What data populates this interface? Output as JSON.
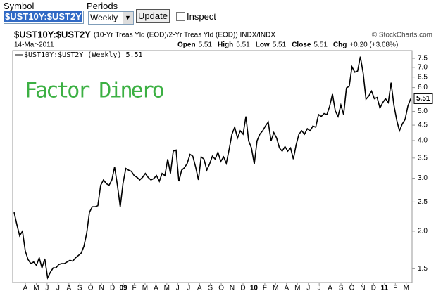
{
  "form": {
    "symbol_label": "Symbol",
    "symbol_value": "$UST10Y:$UST2Y",
    "periods_label": "Periods",
    "periods_value": "Weekly",
    "button": "Update",
    "checkbox": "Inspect"
  },
  "chart_data": {
    "type": "line",
    "title": "$UST10Y:$UST2Y",
    "subtitle": "(10-Yr Treas Yld (EOD)/2-Yr Treas Yld (EOD))  INDX/INDX",
    "credit": "© StockCharts.com",
    "date": "14-Mar-2011",
    "quote": [
      {
        "label": "Open",
        "value": "5.51"
      },
      {
        "label": "High",
        "value": "5.51"
      },
      {
        "label": "Low",
        "value": "5.51"
      },
      {
        "label": "Close",
        "value": "5.51"
      },
      {
        "label": "Chg",
        "value": "+0.20 (+3.68%)"
      }
    ],
    "watermark": "Factor Dinero",
    "last_value_label": "5.51",
    "log_scale": true,
    "grid": false,
    "xticks": [
      "A",
      "M",
      "J",
      "J",
      "A",
      "S",
      "O",
      "N",
      "D",
      "09",
      "F",
      "M",
      "A",
      "M",
      "J",
      "J",
      "A",
      "S",
      "O",
      "N",
      "D",
      "10",
      "F",
      "M",
      "A",
      "M",
      "J",
      "J",
      "A",
      "S",
      "O",
      "N",
      "D",
      "11",
      "F",
      "M"
    ],
    "ylim": [
      1.35,
      7.96
    ],
    "yticks": [
      1.5,
      {
        "value": 2,
        "label": "2.0"
      },
      2.5,
      {
        "value": 3,
        "label": "3.0"
      },
      3.5,
      {
        "value": 4,
        "label": "4.0"
      },
      4.5,
      {
        "value": 5,
        "label": "5.0"
      },
      {
        "value": 6,
        "label": "6.0"
      },
      6.5,
      {
        "value": 7,
        "label": "7.0"
      },
      7.5
    ],
    "series": [
      {
        "name": "$UST10Y:$UST2Y (Weekly) 5.51",
        "color": "#000000",
        "values": [
          2.31,
          2.1,
          1.93,
          2.0,
          1.72,
          1.61,
          1.56,
          1.58,
          1.54,
          1.63,
          1.51,
          1.62,
          1.4,
          1.46,
          1.51,
          1.51,
          1.55,
          1.56,
          1.56,
          1.58,
          1.6,
          1.59,
          1.63,
          1.66,
          1.69,
          1.78,
          1.97,
          2.31,
          2.41,
          2.41,
          2.43,
          2.84,
          2.96,
          2.88,
          2.84,
          2.96,
          3.27,
          2.84,
          2.41,
          2.88,
          3.23,
          3.19,
          3.16,
          3.06,
          3.02,
          2.96,
          3.02,
          3.11,
          3.02,
          2.96,
          2.99,
          3.06,
          2.93,
          3.11,
          3.06,
          3.47,
          3.11,
          3.69,
          3.72,
          2.93,
          3.19,
          3.25,
          3.36,
          3.6,
          3.55,
          3.27,
          2.96,
          3.53,
          3.47,
          3.19,
          3.34,
          3.55,
          3.47,
          3.66,
          3.41,
          3.53,
          3.36,
          3.74,
          4.2,
          4.43,
          4.08,
          4.31,
          4.2,
          4.81,
          3.99,
          3.78,
          3.34,
          3.99,
          4.2,
          4.31,
          4.47,
          4.61,
          3.99,
          4.25,
          4.08,
          3.78,
          3.69,
          3.82,
          3.69,
          3.78,
          3.47,
          3.87,
          4.2,
          4.31,
          4.2,
          4.38,
          4.31,
          4.47,
          4.43,
          4.88,
          4.81,
          4.92,
          4.88,
          5.2,
          5.71,
          5.02,
          4.81,
          5.25,
          4.88,
          5.98,
          6.06,
          7.03,
          6.75,
          6.81,
          7.6,
          6.69,
          5.49,
          5.62,
          5.84,
          5.51,
          5.56,
          5.13,
          5.35,
          5.51,
          5.35,
          6.23,
          5.25,
          4.68,
          4.31,
          4.54,
          4.7,
          5.2,
          5.51
        ]
      }
    ]
  }
}
